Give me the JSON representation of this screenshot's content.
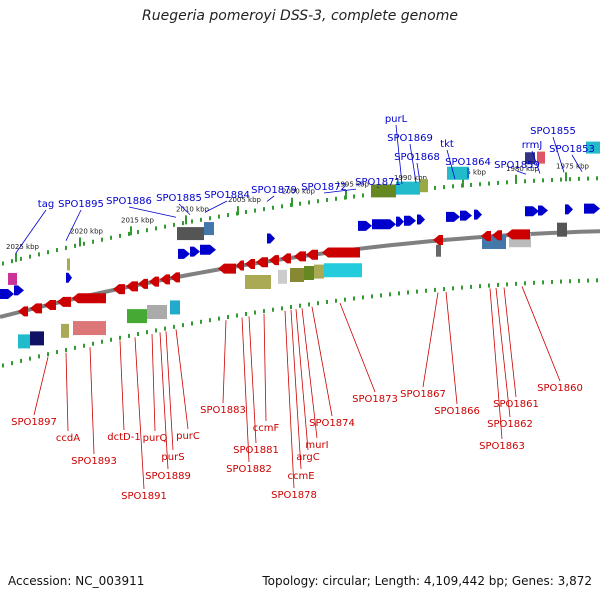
{
  "title": "Ruegeria pomeroyi DSS-3, complete genome",
  "accession": "Accession: NC_003911",
  "topology": "Topology: circular; Length: 4,109,442 bp; Genes: 3,872",
  "colors": {
    "forward": "#0000cc",
    "reverse": "#cc0000",
    "backbone": "#808080",
    "ticks": "#339933"
  },
  "scale_ticks": [
    "2025 kbp",
    "2020 kbp",
    "2015 kbp",
    "2010 kbp",
    "2005 kbp",
    "2000 kbp",
    "1995 kbp",
    "1990 kbp",
    "1985 kbp",
    "1980 kbp",
    "1975 kbp"
  ],
  "forward_labels": [
    "tag",
    "SPO1895",
    "SPO1886",
    "SPO1885",
    "SPO1884",
    "SPO1879",
    "SPO1872",
    "SPO1871",
    "purL",
    "SPO1869",
    "SPO1868",
    "tkt",
    "SPO1864",
    "SPO1859",
    "rrmJ",
    "SPO1855",
    "SPO1853"
  ],
  "reverse_labels": [
    "SPO1897",
    "ccdA",
    "SPO1893",
    "dctD-1",
    "SPO1891",
    "purQ",
    "SPO1889",
    "purS",
    "purC",
    "SPO1883",
    "SPO1881",
    "SPO1882",
    "ccmF",
    "SPO1878",
    "ccmE",
    "argC",
    "murI",
    "SPO1874",
    "SPO1873",
    "SPO1867",
    "SPO1866",
    "SPO1861",
    "SPO1862",
    "SPO1863",
    "SPO1860"
  ]
}
